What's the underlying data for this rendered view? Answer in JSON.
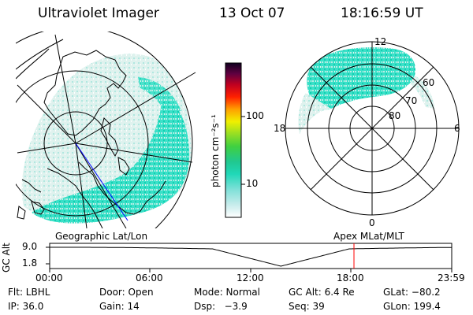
{
  "header": {
    "instrument": "Ultraviolet Imager",
    "date": "13 Oct 07",
    "time": "18:16:59 UT"
  },
  "colorbar": {
    "label": "photon cm⁻²s⁻¹",
    "ticks": [
      "100",
      "10"
    ]
  },
  "left_panel": {
    "caption": "Geographic Lat/Lon"
  },
  "right_panel": {
    "caption": "Apex MLat/MLT",
    "mlt_labels": {
      "top": "12",
      "left": "18",
      "right": "6",
      "bottom": "0"
    },
    "lat_labels": [
      "60",
      "70",
      "80"
    ]
  },
  "altitude_plot": {
    "ylabel": "GC Alt",
    "yticks": [
      "9.0",
      "1.8"
    ],
    "xticks": [
      "00:00",
      "06:00",
      "12:00",
      "18:00",
      "23:59"
    ],
    "current_time_marker": "18:16"
  },
  "info": {
    "row1": {
      "filter": "Flt: LBHL",
      "door": "Door: Open",
      "mode": "Mode: Normal",
      "gc_alt": "GC Alt: 6.4 Re",
      "glat": "GLat: −80.2"
    },
    "row2": {
      "ip": "IP: 36.0",
      "gain": "Gain: 14",
      "dsp": "Dsp:   −3.9",
      "seq": "Seq: 39",
      "glon": "GLon: 199.4"
    }
  },
  "colors": {
    "aurora": "#2ee6c8",
    "aurora_light": "#c8f0e8",
    "marker": "#ff0000",
    "track": "#0000ff"
  }
}
